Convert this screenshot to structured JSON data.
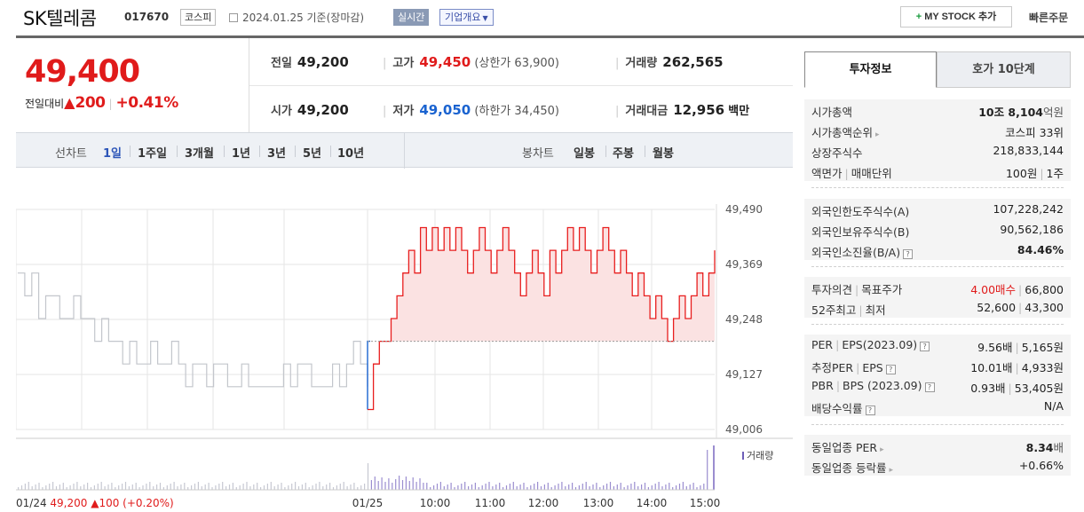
{
  "header": {
    "stock_name": "SK텔레콤",
    "stock_code": "017670",
    "market_badge": "코스피",
    "date_text": "2024.01.25 기준(장마감)",
    "realtime_label": "실시간",
    "corp_info_label": "기업개요",
    "mystock_label": "MY STOCK 추가",
    "quick_order_label": "빠른주문"
  },
  "price": {
    "current": "49,400",
    "change_label": "전일대비",
    "change_value": "200",
    "change_rate": "+0.41%"
  },
  "summary": {
    "prev_close_label": "전일",
    "prev_close": "49,200",
    "high_label": "고가",
    "high": "49,450",
    "upper_limit": "(상한가 63,900)",
    "volume_label": "거래량",
    "volume": "262,565",
    "open_label": "시가",
    "open": "49,200",
    "low_label": "저가",
    "low": "49,050",
    "lower_limit": "(하한가 34,450)",
    "amount_label": "거래대금",
    "amount": "12,956",
    "amount_unit": "백만"
  },
  "period_bar": {
    "line_label": "선차트",
    "line_items": [
      "1일",
      "1주일",
      "3개월",
      "1년",
      "3년",
      "5년",
      "10년"
    ],
    "selected": "1일",
    "candle_label": "봉차트",
    "candle_items": [
      "일봉",
      "주봉",
      "월봉"
    ]
  },
  "chart_data": {
    "type": "line",
    "ylim": [
      49006,
      49490
    ],
    "yticks": [
      "49,490",
      "49,369",
      "49,248",
      "49,127",
      "49,006"
    ],
    "xticks": [
      "01/25",
      "10:00",
      "11:00",
      "12:00",
      "13:00",
      "14:00",
      "15:00"
    ],
    "prev_day": {
      "date": "01/24",
      "close": "49,200",
      "change": "100",
      "rate": "(+0.20%)"
    },
    "baseline": 49200,
    "volume_label": "거래량",
    "series": [
      {
        "values": [
          49350,
          49300,
          49350,
          49250,
          49300,
          49300,
          49250,
          49250,
          49300,
          49250,
          49250,
          49200,
          49250,
          49200,
          49200,
          49150,
          49200,
          49150,
          49150,
          49200,
          49150,
          49150,
          49200,
          49150,
          49100,
          49150,
          49150,
          49100,
          49150,
          49150,
          49100,
          49100,
          49150,
          49100,
          49100,
          49100,
          49100,
          49100,
          49150,
          49100,
          49150,
          49150,
          49100,
          49100,
          49100,
          49150,
          49100,
          49150,
          49200,
          49150,
          49100
        ]
      },
      {
        "values": [
          49050,
          49150,
          49200,
          49200,
          49250,
          49300,
          49350,
          49400,
          49350,
          49450,
          49400,
          49450,
          49400,
          49450,
          49400,
          49450,
          49400,
          49350,
          49400,
          49450,
          49400,
          49350,
          49400,
          49450,
          49400,
          49350,
          49300,
          49350,
          49400,
          49350,
          49300,
          49400,
          49350,
          49400,
          49450,
          49400,
          49450,
          49400,
          49350,
          49400,
          49450,
          49400,
          49350,
          49400,
          49350,
          49300,
          49350,
          49300,
          49250,
          49300,
          49250,
          49200,
          49250,
          49300,
          49250,
          49300,
          49350,
          49300,
          49350,
          49400
        ]
      }
    ]
  },
  "invest_tabs": [
    "투자정보",
    "호가 10단계"
  ],
  "invest_info": {
    "group1": [
      {
        "label": "시가총액",
        "value_b": "10조 8,104",
        "value_unit": "억원"
      },
      {
        "label": "시가총액순위",
        "value": "코스피 33위",
        "arrow": "▸"
      },
      {
        "label": "상장주식수",
        "value": "218,833,144"
      },
      {
        "label": "액면가",
        "label2": "매매단위",
        "value": "100원",
        "value2": "1주"
      }
    ],
    "group2": [
      {
        "label": "외국인한도주식수(A)",
        "value": "107,228,242"
      },
      {
        "label": "외국인보유주식수(B)",
        "value": "90,562,186"
      },
      {
        "label": "외국인소진율(B/A)",
        "value_b": "84.46%"
      }
    ],
    "group3": [
      {
        "label": "투자의견",
        "label2": "목표주가",
        "value_red": "4.00매수",
        "value2": "66,800"
      },
      {
        "label": "52주최고",
        "label2": "최저",
        "value": "52,600",
        "value2": "43,300"
      }
    ],
    "group4": [
      {
        "label": "PER",
        "label2": "EPS(2023.09)",
        "value": "9.56배",
        "value2": "5,165원"
      },
      {
        "label": "추정PER",
        "label2": "EPS",
        "value": "10.01배",
        "value2": "4,933원"
      },
      {
        "label": "PBR",
        "label2": "BPS (2023.09)",
        "value": "0.93배",
        "value2": "53,405원"
      },
      {
        "label": "배당수익률",
        "value": "N/A"
      }
    ],
    "group5": [
      {
        "label": "동일업종 PER",
        "value_b": "8.34",
        "value_unit": "배"
      },
      {
        "label": "동일업종 등락률",
        "value_red": "+0.66%"
      }
    ]
  },
  "colors": {
    "up": "#e01b1b",
    "down": "#1a63d0",
    "accent": "#2c55b8"
  }
}
